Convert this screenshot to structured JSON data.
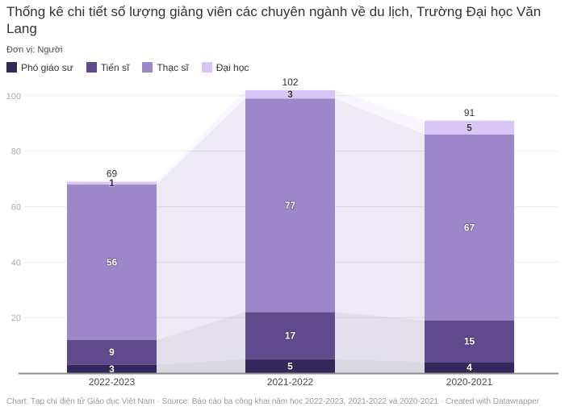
{
  "chart_data": {
    "type": "bar",
    "stacked": true,
    "title": "Thống kê chi tiết số lượng giảng viên các chuyên ngành về du lịch, Trường Đại học Văn Lang",
    "subtitle": "Đơn vị: Người",
    "unit": "Người",
    "categories": [
      "2022-2023",
      "2021-2022",
      "2020-2021"
    ],
    "series": [
      {
        "name": "Phó giáo sư",
        "color": "#33275c",
        "values": [
          3,
          5,
          4
        ]
      },
      {
        "name": "Tiến sĩ",
        "color": "#5f4b8b",
        "values": [
          9,
          17,
          15
        ]
      },
      {
        "name": "Thạc sĩ",
        "color": "#9c87c9",
        "values": [
          56,
          77,
          67
        ]
      },
      {
        "name": "Đại học",
        "color": "#d7c6f5",
        "values": [
          1,
          3,
          5
        ]
      }
    ],
    "totals": [
      69,
      102,
      91
    ],
    "ylim": [
      0,
      102
    ],
    "yticks": [
      20,
      40,
      60,
      80,
      100
    ],
    "grid": true,
    "legend_position": "top",
    "connectors": true,
    "colors": {
      "grid_line": "#e9e9e9",
      "axis_line": "#8f8f8f",
      "y_tick_label": "#a9a9a9",
      "x_tick_label": "#4a4a4a",
      "total_label": "#333333"
    }
  },
  "footer": {
    "text": "Chart: Tạp chí điện tử Giáo dục Việt Nam · Source: Báo cáo ba công khai năm học 2022-2023, 2021-2022 và 2020-2021 · Created with Datawrapper"
  }
}
